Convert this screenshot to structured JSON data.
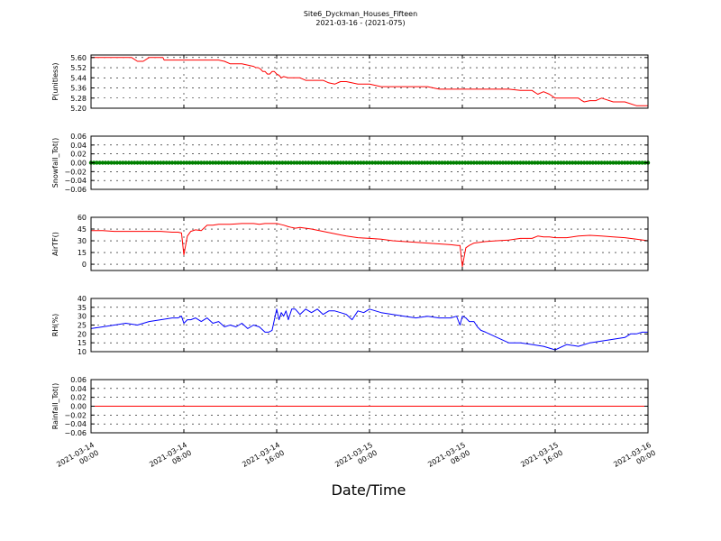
{
  "figure": {
    "title_line1": "Site6_Dyckman_Houses_Fifteen",
    "title_line2": "2021-03-16 - (2021-075)",
    "xlabel": "Date/Time"
  },
  "chart_data": {
    "type": "line",
    "x_axis": {
      "ticks": [
        {
          "x_hours": 0,
          "line1": "2021-03-14",
          "line2": "00:00"
        },
        {
          "x_hours": 8,
          "line1": "2021-03-14",
          "line2": "08:00"
        },
        {
          "x_hours": 16,
          "line1": "2021-03-14",
          "line2": "16:00"
        },
        {
          "x_hours": 24,
          "line1": "2021-03-15",
          "line2": "00:00"
        },
        {
          "x_hours": 32,
          "line1": "2021-03-15",
          "line2": "08:00"
        },
        {
          "x_hours": 40,
          "line1": "2021-03-15",
          "line2": "16:00"
        },
        {
          "x_hours": 48,
          "line1": "2021-03-16",
          "line2": "00:00"
        }
      ],
      "range_hours": [
        0,
        48
      ]
    },
    "panels": [
      {
        "id": "pressure",
        "ylabel": "P(unitless)",
        "ylim": [
          5.2,
          5.62
        ],
        "yticks": [
          "5.20",
          "5.28",
          "5.36",
          "5.44",
          "5.52",
          "5.60"
        ],
        "ytick_values": [
          5.2,
          5.28,
          5.36,
          5.44,
          5.52,
          5.6
        ],
        "color": "#ff0000",
        "style": "line",
        "x": [
          0,
          3.5,
          4,
          4.5,
          5,
          6.2,
          6.3,
          8,
          10,
          11,
          11.5,
          12,
          13,
          14,
          14.2,
          14.4,
          14.6,
          14.8,
          15,
          15.2,
          15.4,
          15.6,
          15.8,
          16,
          16.2,
          16.4,
          16.6,
          17,
          18,
          18.5,
          20,
          20.5,
          21,
          21.5,
          22,
          23,
          24,
          25,
          26,
          26.5,
          27,
          28,
          29,
          30,
          31,
          32,
          33,
          34,
          35,
          36,
          37,
          38,
          38.5,
          39,
          39.5,
          40,
          41,
          42,
          42.3,
          42.5,
          43,
          43.5,
          44,
          45,
          46,
          47,
          48
        ],
        "y": [
          5.6,
          5.6,
          5.57,
          5.57,
          5.6,
          5.6,
          5.58,
          5.58,
          5.58,
          5.58,
          5.57,
          5.55,
          5.55,
          5.53,
          5.52,
          5.52,
          5.51,
          5.49,
          5.49,
          5.47,
          5.47,
          5.49,
          5.49,
          5.47,
          5.46,
          5.44,
          5.45,
          5.44,
          5.44,
          5.42,
          5.42,
          5.4,
          5.39,
          5.41,
          5.41,
          5.39,
          5.39,
          5.37,
          5.37,
          5.37,
          5.37,
          5.37,
          5.37,
          5.35,
          5.35,
          5.35,
          5.35,
          5.35,
          5.35,
          5.35,
          5.34,
          5.34,
          5.31,
          5.33,
          5.31,
          5.28,
          5.28,
          5.28,
          5.26,
          5.25,
          5.26,
          5.26,
          5.28,
          5.25,
          5.25,
          5.22,
          5.22
        ],
        "grid": true
      },
      {
        "id": "snowfall",
        "ylabel": "Snowfall_Tot()",
        "ylim": [
          -0.06,
          0.06
        ],
        "yticks": [
          "−0.06",
          "−0.04",
          "−0.02",
          "0.00",
          "0.02",
          "0.04",
          "0.06"
        ],
        "ytick_values": [
          -0.06,
          -0.04,
          -0.02,
          0.0,
          0.02,
          0.04,
          0.06
        ],
        "color": "#008000",
        "style": "markers",
        "constant_value": 0.0,
        "grid": true
      },
      {
        "id": "airtf",
        "ylabel": "AirTF()",
        "ylim": [
          -8,
          60
        ],
        "yticks": [
          "0",
          "15",
          "30",
          "45",
          "60"
        ],
        "ytick_values": [
          0,
          15,
          30,
          45,
          60
        ],
        "color": "#ff0000",
        "style": "line",
        "x": [
          0,
          1,
          2,
          3,
          4,
          5,
          6,
          7,
          7.5,
          7.8,
          8,
          8.3,
          8.6,
          9,
          9.5,
          10,
          10.5,
          11,
          12,
          13,
          14,
          14.5,
          15,
          15.5,
          16,
          16.3,
          16.6,
          17,
          17.3,
          17.6,
          18,
          19,
          20,
          21,
          22,
          23,
          24,
          25,
          26,
          27,
          28,
          29,
          30,
          31,
          31.6,
          31.8,
          32,
          32.3,
          32.6,
          33,
          33.5,
          34,
          35,
          36,
          37,
          38,
          38.5,
          39,
          39.5,
          40,
          41,
          42,
          43,
          44,
          45,
          46,
          47,
          48
        ],
        "y": [
          43,
          43,
          42,
          42,
          42,
          42,
          42,
          41,
          41,
          40,
          12,
          36,
          42,
          44,
          43,
          50,
          50,
          51,
          51,
          52,
          52,
          51,
          52,
          52,
          52,
          51,
          50,
          48,
          47,
          46,
          47,
          45,
          42,
          39,
          36,
          34,
          33,
          32,
          30,
          29,
          28,
          27,
          26,
          25,
          24,
          24,
          -3,
          21,
          24,
          27,
          28,
          29,
          30,
          31,
          33,
          33,
          36,
          35,
          35,
          34,
          34,
          36,
          37,
          36,
          35,
          34,
          32,
          30
        ],
        "grid": true
      },
      {
        "id": "rh",
        "ylabel": "RH(%)",
        "ylim": [
          10,
          40
        ],
        "yticks": [
          "10",
          "15",
          "20",
          "25",
          "30",
          "35",
          "40"
        ],
        "ytick_values": [
          10,
          15,
          20,
          25,
          30,
          35,
          40
        ],
        "color": "#0000ff",
        "style": "line",
        "x": [
          0,
          1,
          2,
          3,
          4,
          5,
          6,
          7,
          7.5,
          7.8,
          8,
          8.3,
          8.6,
          9,
          9.5,
          10,
          10.5,
          11,
          11.5,
          12,
          12.5,
          13,
          13.5,
          14,
          14.5,
          15,
          15.3,
          15.6,
          16,
          16.2,
          16.4,
          16.6,
          16.8,
          17,
          17.3,
          17.6,
          18,
          18.5,
          19,
          19.5,
          20,
          20.5,
          21,
          21.5,
          22,
          22.5,
          23,
          23.5,
          24,
          25,
          26,
          27,
          28,
          29,
          30,
          31,
          31.5,
          31.8,
          32,
          32.3,
          32.6,
          33,
          33.3,
          33.6,
          34,
          35,
          36,
          37,
          38,
          39,
          40,
          41,
          42,
          43,
          44,
          45,
          46,
          46.5,
          47,
          47.5,
          48
        ],
        "y": [
          23,
          24,
          25,
          26,
          25,
          27,
          28,
          29,
          29,
          30,
          26,
          28,
          28,
          29,
          27,
          29,
          26,
          27,
          24,
          25,
          24,
          26,
          23,
          25,
          24,
          21,
          21,
          22,
          34,
          28,
          32,
          30,
          33,
          28,
          34,
          34,
          31,
          34,
          32,
          34,
          31,
          33,
          33,
          32,
          31,
          28,
          33,
          32,
          34,
          32,
          31,
          30,
          29,
          30,
          29,
          29,
          30,
          25,
          30,
          29,
          27,
          27,
          24,
          22,
          21,
          18,
          15,
          15,
          14,
          13,
          11,
          14,
          13,
          15,
          16,
          17,
          18,
          20,
          20,
          21,
          21
        ],
        "grid": true
      },
      {
        "id": "rainfall",
        "ylabel": "Rainfall_Tot()",
        "ylim": [
          -0.06,
          0.06
        ],
        "yticks": [
          "−0.06",
          "−0.04",
          "−0.02",
          "0.00",
          "0.02",
          "0.04",
          "0.06"
        ],
        "ytick_values": [
          -0.06,
          -0.04,
          -0.02,
          0.0,
          0.02,
          0.04,
          0.06
        ],
        "color": "#ff0000",
        "style": "line",
        "constant_value": 0.0,
        "grid": true
      }
    ]
  }
}
